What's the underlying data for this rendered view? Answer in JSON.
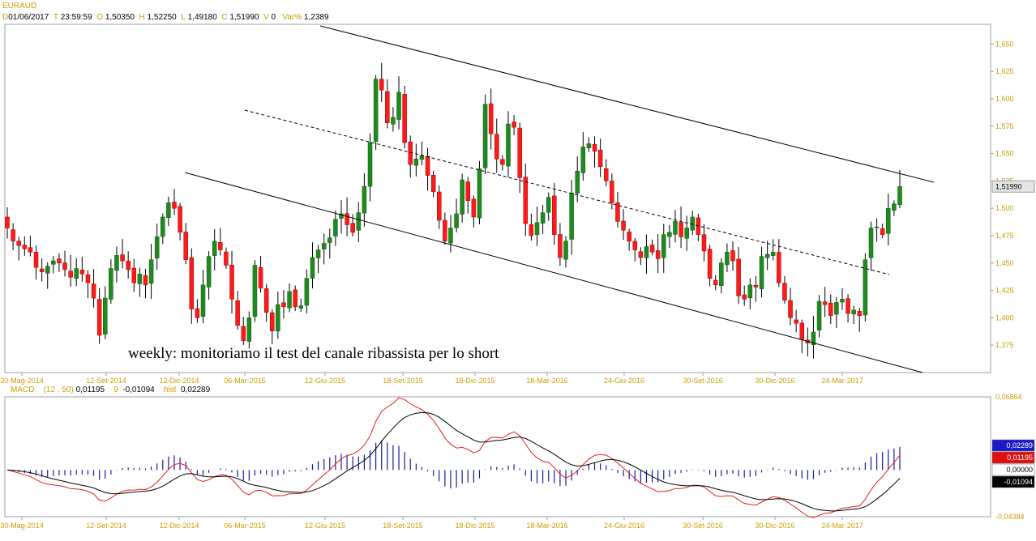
{
  "header": {
    "symbol": "EURAUD",
    "date_key": "D",
    "date": "01/06/2017",
    "time_key": "T",
    "time": "23:59:59",
    "open_key": "O",
    "open": "1,50350",
    "high_key": "H",
    "high": "1,52250",
    "low_key": "L",
    "low": "1,49180",
    "close_key": "C",
    "close": "1,51990",
    "volume_key": "V",
    "volume": "0",
    "var_key": "Var%",
    "var": "1,2389"
  },
  "colors": {
    "up": "#1f8a1f",
    "down": "#ff1a1a",
    "wick": "#000000",
    "axis_label": "#c8a000",
    "macd_line": "#e0201c",
    "signal_line": "#000000",
    "hist": "#1a1aa0",
    "price_tag": "#e6e6e6",
    "frame": "#a0a0a0"
  },
  "chart_data": [
    {
      "type": "candlestick",
      "title": "EURAUD",
      "annotation": "weekly: monitoriamo il test del canale ribassista per lo short",
      "ylim": [
        1.35,
        1.668
      ],
      "y_ticks": [
        "1,650",
        "1,625",
        "1,600",
        "1,575",
        "1,550",
        "1,525",
        "1,500",
        "1,475",
        "1,450",
        "1,425",
        "1,400",
        "1,375"
      ],
      "last_price_label": "1,51990",
      "x_tick_labels": [
        "30-Mag-2014",
        "12-Set-2014",
        "12-Dic-2014",
        "06-Mar-2015",
        "12-Giu-2015",
        "18-Set-2015",
        "18-Dic-2015",
        "18-Mar-2016",
        "24-Giu-2016",
        "30-Set-2016",
        "30-Dic-2016",
        "24-Mar-2017"
      ],
      "close_series": [
        1.482,
        1.47,
        1.466,
        1.463,
        1.46,
        1.446,
        1.442,
        1.447,
        1.452,
        1.45,
        1.444,
        1.437,
        1.445,
        1.44,
        1.432,
        1.418,
        1.384,
        1.418,
        1.445,
        1.457,
        1.452,
        1.444,
        1.432,
        1.44,
        1.43,
        1.453,
        1.474,
        1.492,
        1.505,
        1.5,
        1.478,
        1.453,
        1.408,
        1.4,
        1.43,
        1.456,
        1.47,
        1.462,
        1.448,
        1.417,
        1.393,
        1.379,
        1.4,
        1.448,
        1.427,
        1.405,
        1.388,
        1.412,
        1.41,
        1.424,
        1.41,
        1.411,
        1.436,
        1.455,
        1.462,
        1.468,
        1.473,
        1.49,
        1.495,
        1.485,
        1.478,
        1.496,
        1.52,
        1.56,
        1.618,
        1.608,
        1.578,
        1.583,
        1.606,
        1.56,
        1.54,
        1.545,
        1.548,
        1.53,
        1.515,
        1.489,
        1.47,
        1.482,
        1.495,
        1.526,
        1.507,
        1.492,
        1.536,
        1.595,
        1.568,
        1.545,
        1.54,
        1.577,
        1.574,
        1.528,
        1.486,
        1.475,
        1.487,
        1.496,
        1.51,
        1.476,
        1.455,
        1.47,
        1.514,
        1.534,
        1.556,
        1.559,
        1.552,
        1.538,
        1.525,
        1.505,
        1.488,
        1.48,
        1.47,
        1.462,
        1.455,
        1.465,
        1.46,
        1.454,
        1.476,
        1.478,
        1.488,
        1.474,
        1.482,
        1.492,
        1.476,
        1.461,
        1.436,
        1.43,
        1.45,
        1.46,
        1.452,
        1.42,
        1.417,
        1.43,
        1.428,
        1.456,
        1.458,
        1.46,
        1.432,
        1.416,
        1.4,
        1.395,
        1.38,
        1.377,
        1.387,
        1.415,
        1.412,
        1.402,
        1.414,
        1.417,
        1.404,
        1.407,
        1.402,
        1.453,
        1.482,
        1.483,
        1.476,
        1.5,
        1.504,
        1.5199
      ],
      "series": [
        {
          "name": "EURAUD",
          "values": "close_series"
        }
      ]
    },
    {
      "type": "line",
      "title": "MACD",
      "params": "(12 , 50)",
      "macd_value": "0,01195",
      "signal_period": "9",
      "signal_value": "-0,01094",
      "hist_label": "hist",
      "hist_value": "0,02289",
      "ylim": [
        -0.04384,
        0.06864
      ],
      "y_ticks": [
        "0,06864",
        "0,00000",
        "-0,04384"
      ],
      "tags": [
        "0,02289",
        "0,01195",
        "0,00000",
        "-0,01094"
      ],
      "x_tick_labels": [
        "30-Mag-2014",
        "12-Set-2014",
        "12-Dic-2014",
        "06-Mar-2015",
        "12-Giu-2015",
        "18-Set-2015",
        "18-Dic-2015",
        "18-Mar-2016",
        "24-Giu-2016",
        "30-Set-2016",
        "30-Dic-2016",
        "24-Mar-2017"
      ]
    }
  ]
}
